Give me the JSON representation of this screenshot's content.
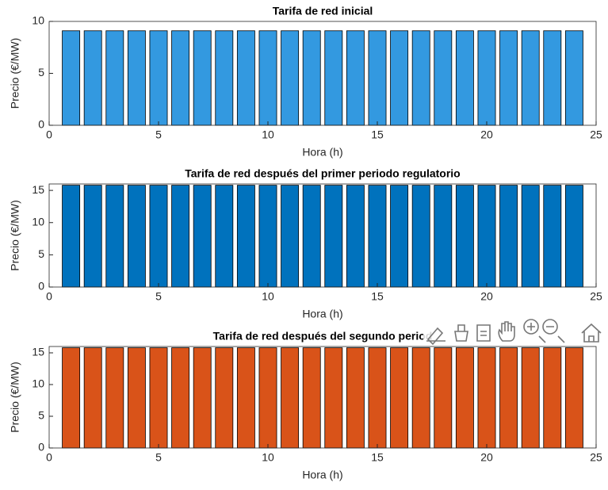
{
  "chart_data": [
    {
      "type": "bar",
      "title": "Tarifa de red inicial",
      "xlabel": "Hora (h)",
      "ylabel": "Precio (€/MW)",
      "color": "#3399e0",
      "x": [
        1,
        2,
        3,
        4,
        5,
        6,
        7,
        8,
        9,
        10,
        11,
        12,
        13,
        14,
        15,
        16,
        17,
        18,
        19,
        20,
        21,
        22,
        23,
        24
      ],
      "values": [
        9.1,
        9.1,
        9.1,
        9.1,
        9.1,
        9.1,
        9.1,
        9.1,
        9.1,
        9.1,
        9.1,
        9.1,
        9.1,
        9.1,
        9.1,
        9.1,
        9.1,
        9.1,
        9.1,
        9.1,
        9.1,
        9.1,
        9.1,
        9.1
      ],
      "xlim": [
        0,
        25
      ],
      "xticks": [
        0,
        5,
        10,
        15,
        20,
        25
      ],
      "ylim": [
        0,
        10
      ],
      "yticks": [
        0,
        5,
        10
      ]
    },
    {
      "type": "bar",
      "title": "Tarifa de red después del primer periodo regulatorio",
      "xlabel": "Hora (h)",
      "ylabel": "Precio (€/MW)",
      "color": "#0072bd",
      "x": [
        1,
        2,
        3,
        4,
        5,
        6,
        7,
        8,
        9,
        10,
        11,
        12,
        13,
        14,
        15,
        16,
        17,
        18,
        19,
        20,
        21,
        22,
        23,
        24
      ],
      "values": [
        15.8,
        15.8,
        15.8,
        15.8,
        15.8,
        15.8,
        15.8,
        15.8,
        15.8,
        15.8,
        15.8,
        15.8,
        15.8,
        15.8,
        15.8,
        15.8,
        15.8,
        15.8,
        15.8,
        15.8,
        15.8,
        15.8,
        15.8,
        15.8
      ],
      "xlim": [
        0,
        25
      ],
      "xticks": [
        0,
        5,
        10,
        15,
        20,
        25
      ],
      "ylim": [
        0,
        16
      ],
      "yticks": [
        0,
        5,
        10,
        15
      ]
    },
    {
      "type": "bar",
      "title": "Tarifa de red después del segundo period",
      "xlabel": "Hora (h)",
      "ylabel": "Precio (€/MW)",
      "color": "#d95319",
      "x": [
        1,
        2,
        3,
        4,
        5,
        6,
        7,
        8,
        9,
        10,
        11,
        12,
        13,
        14,
        15,
        16,
        17,
        18,
        19,
        20,
        21,
        22,
        23,
        24
      ],
      "values": [
        15.8,
        15.8,
        15.8,
        15.8,
        15.8,
        15.8,
        15.8,
        15.8,
        15.8,
        15.8,
        15.8,
        15.8,
        15.8,
        15.8,
        15.8,
        15.8,
        15.8,
        15.8,
        15.8,
        15.8,
        15.8,
        15.8,
        15.8,
        15.8
      ],
      "xlim": [
        0,
        25
      ],
      "xticks": [
        0,
        5,
        10,
        15,
        20,
        25
      ],
      "ylim": [
        0,
        16
      ],
      "yticks": [
        0,
        5,
        10,
        15
      ]
    }
  ]
}
